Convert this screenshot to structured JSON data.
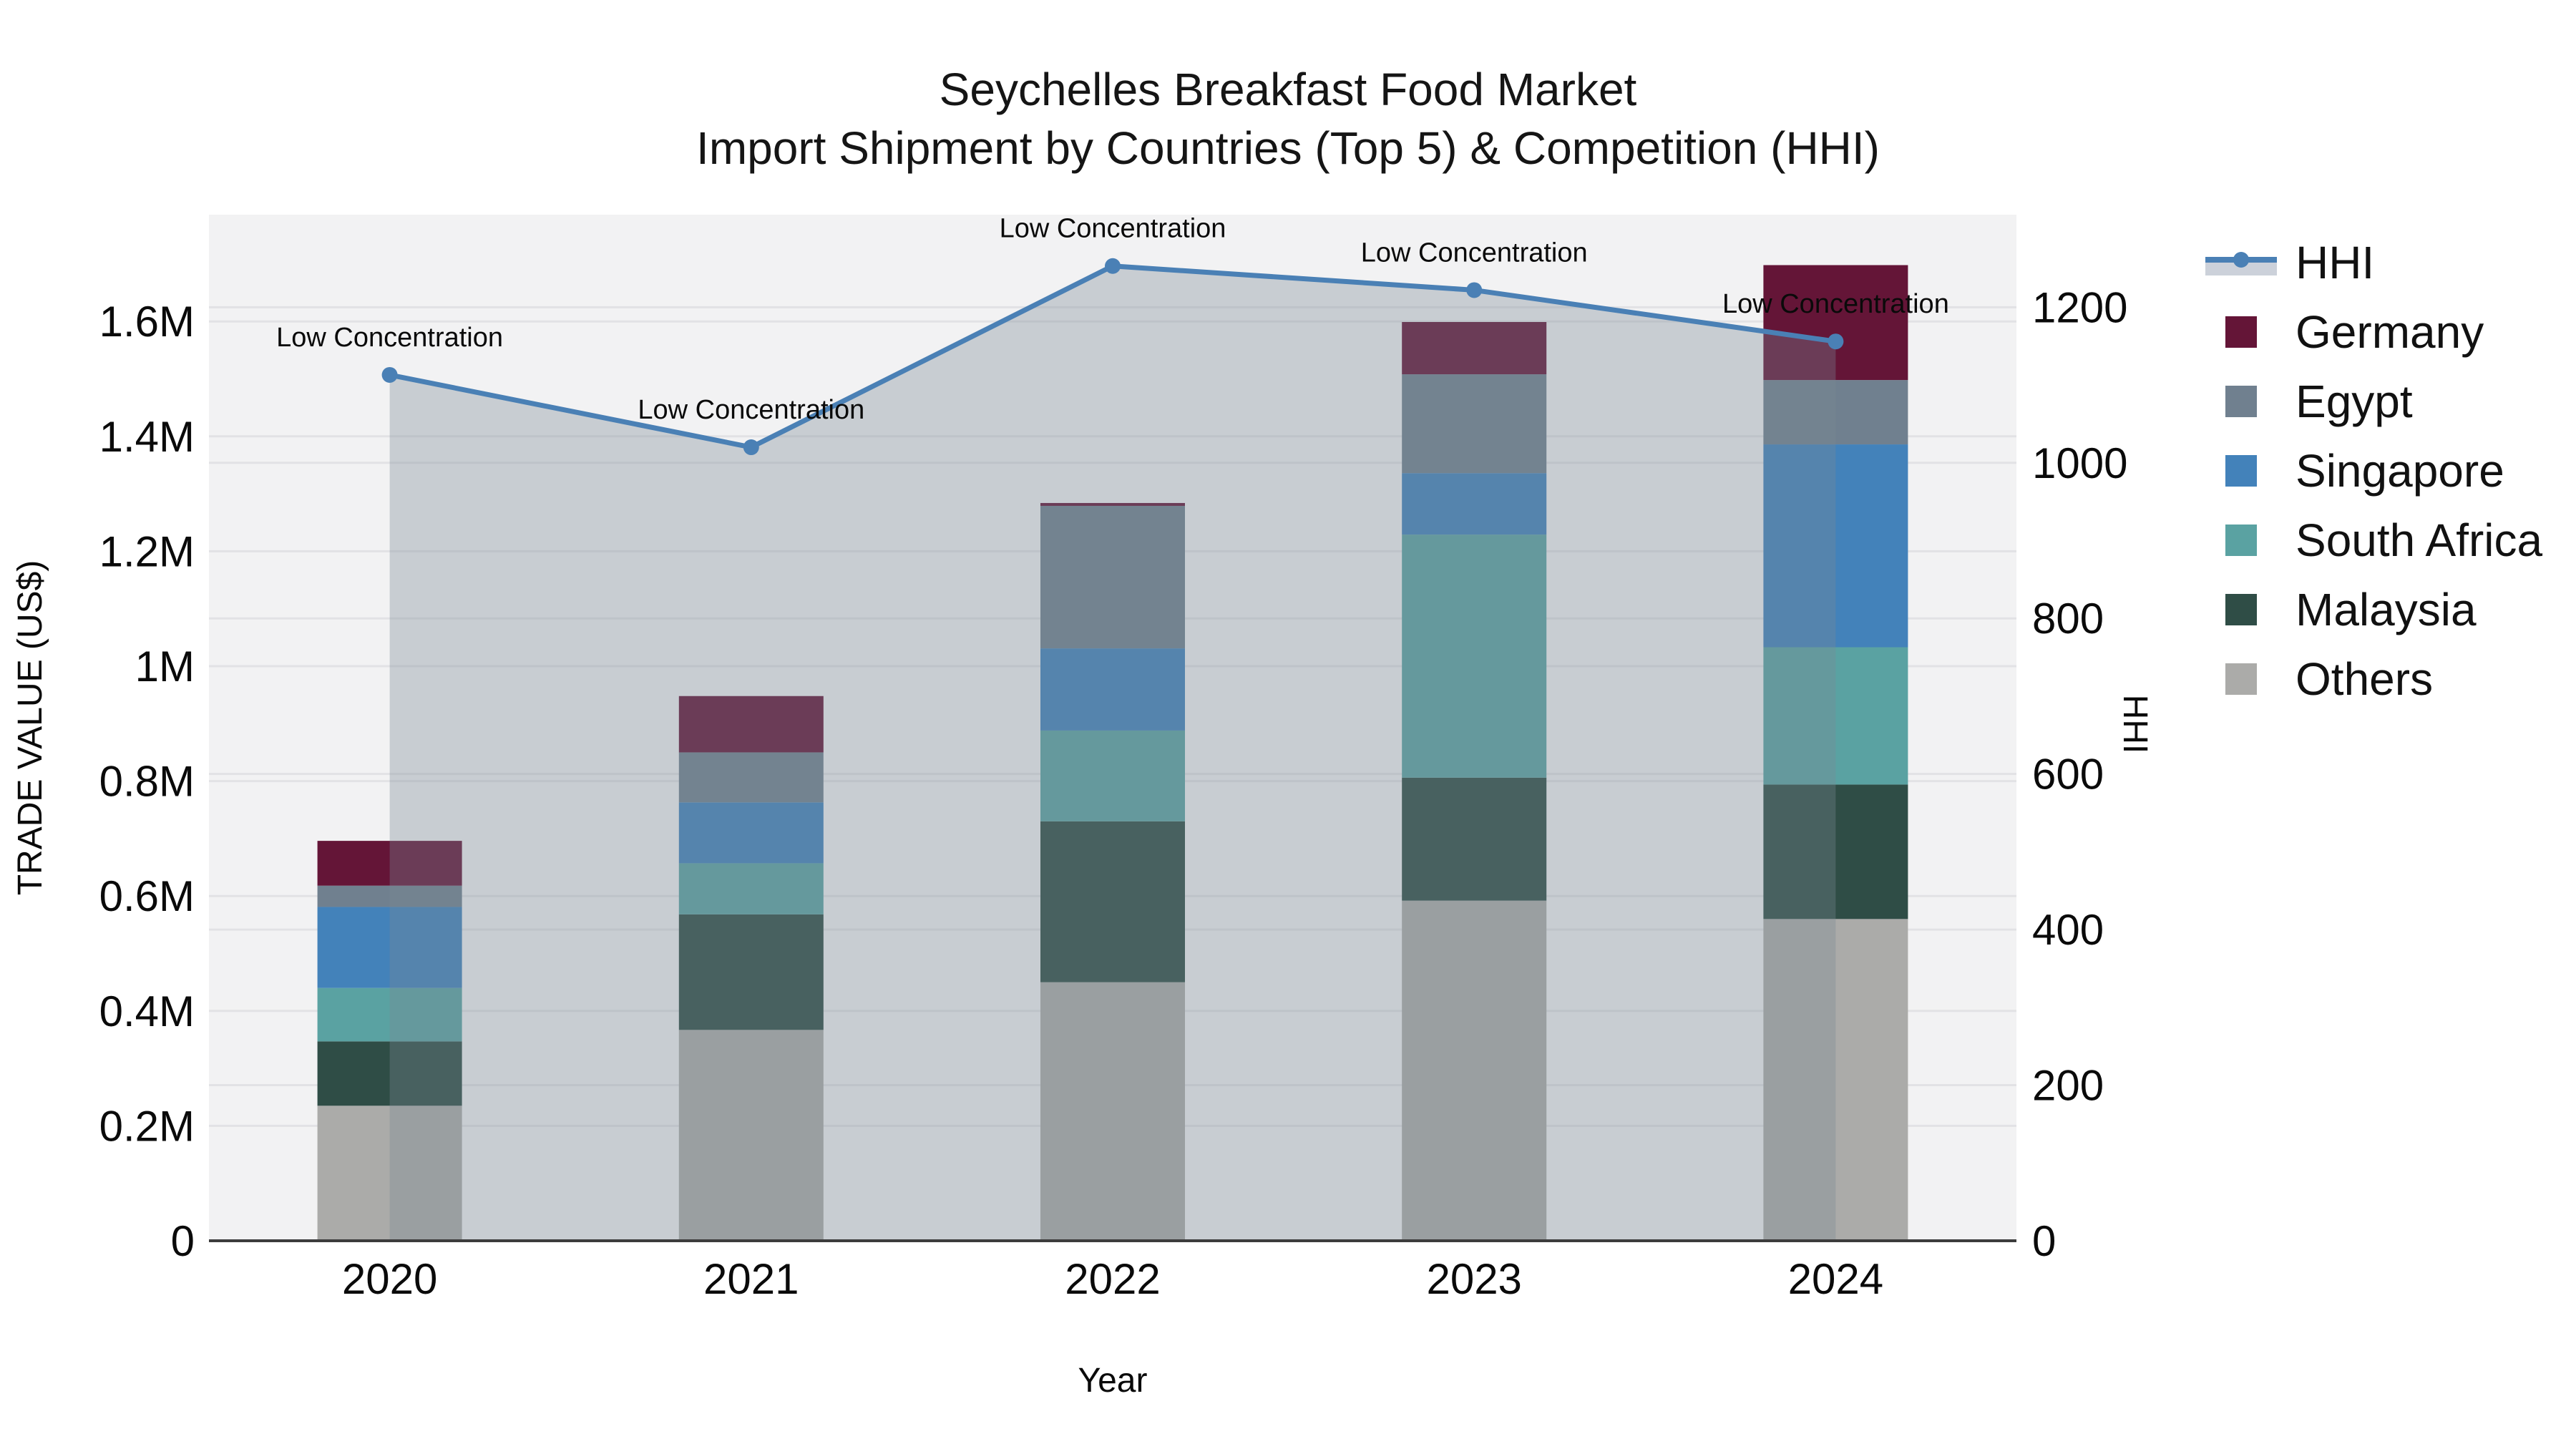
{
  "title": {
    "line1": "Seychelles Breakfast Food Market",
    "line2": "Import Shipment by Countries (Top 5) & Competition (HHI)"
  },
  "chart_data": {
    "type": "combo: stacked bar + line (secondary axis) with shaded area under line",
    "categories": [
      "2020",
      "2021",
      "2022",
      "2023",
      "2024"
    ],
    "series": [
      {
        "name": "Others",
        "color": "#ababa9",
        "values": [
          235000,
          367000,
          450000,
          592000,
          560000
        ]
      },
      {
        "name": "Malaysia",
        "color": "#2f4d46",
        "values": [
          112000,
          201000,
          280000,
          214000,
          234000
        ]
      },
      {
        "name": "South Africa",
        "color": "#5aa2a2",
        "values": [
          93000,
          89000,
          158000,
          423000,
          239000
        ]
      },
      {
        "name": "Singapore",
        "color": "#4382ba",
        "values": [
          141000,
          106000,
          143000,
          107000,
          353000
        ]
      },
      {
        "name": "Egypt",
        "color": "#70808f",
        "values": [
          37000,
          87000,
          248000,
          172000,
          112000
        ]
      },
      {
        "name": "Germany",
        "color": "#641537",
        "values": [
          78000,
          98000,
          5000,
          91000,
          200000
        ]
      }
    ],
    "line_series": {
      "name": "HHI",
      "color": "#4a80b5",
      "area_fill": "rgba(122,135,148,0.345)",
      "values": [
        1113,
        1020,
        1253,
        1222,
        1156
      ],
      "annotations": [
        "Low Concentration",
        "Low Concentration",
        "Low Concentration",
        "Low Concentration",
        "Low Concentration"
      ]
    },
    "xlabel": "Year",
    "ylabel_left": "TRADE VALUE (US$)",
    "ylabel_right": "HHI",
    "y_left_ticks": [
      {
        "label": "0",
        "value": 0
      },
      {
        "label": "0.2M",
        "value": 200000
      },
      {
        "label": "0.4M",
        "value": 400000
      },
      {
        "label": "0.6M",
        "value": 600000
      },
      {
        "label": "0.8M",
        "value": 800000
      },
      {
        "label": "1M",
        "value": 1000000
      },
      {
        "label": "1.2M",
        "value": 1200000
      },
      {
        "label": "1.4M",
        "value": 1400000
      },
      {
        "label": "1.6M",
        "value": 1600000
      }
    ],
    "y_right_ticks": [
      {
        "label": "0",
        "value": 0
      },
      {
        "label": "200",
        "value": 200
      },
      {
        "label": "400",
        "value": 400
      },
      {
        "label": "600",
        "value": 600
      },
      {
        "label": "800",
        "value": 800
      },
      {
        "label": "1000",
        "value": 1000
      },
      {
        "label": "1200",
        "value": 1200
      }
    ],
    "x_tick_labels": [
      "2020",
      "2021",
      "2022",
      "2023",
      "2024"
    ],
    "plot_bg": "#f2f2f3",
    "grid_color": "#e2e2e5",
    "axis_line_color": "#3c3c3c",
    "legend_position": "right"
  },
  "legend": [
    {
      "label": "HHI",
      "marker": "line-dot-band",
      "color": "#4a80b5"
    },
    {
      "label": "Germany",
      "marker": "square",
      "color": "#641537"
    },
    {
      "label": "Egypt",
      "marker": "square",
      "color": "#70808f"
    },
    {
      "label": "Singapore",
      "marker": "square",
      "color": "#4382ba"
    },
    {
      "label": "South Africa",
      "marker": "square",
      "color": "#5aa2a2"
    },
    {
      "label": "Malaysia",
      "marker": "square",
      "color": "#2f4d46"
    },
    {
      "label": "Others",
      "marker": "square",
      "color": "#ababa9"
    }
  ]
}
